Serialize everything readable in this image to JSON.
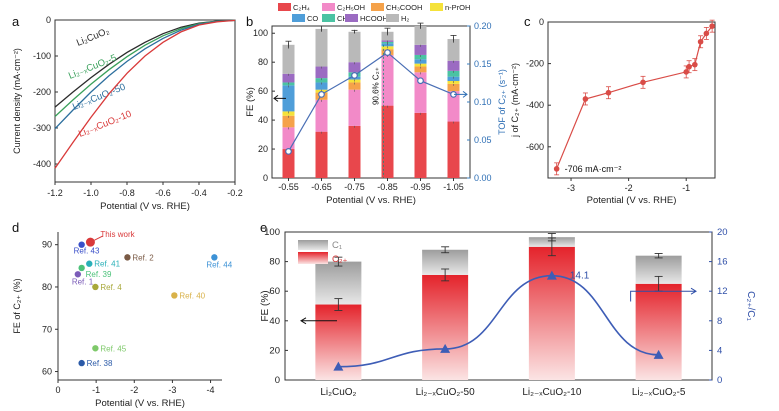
{
  "chart_data": [
    {
      "panel": "a",
      "type": "line",
      "xlabel": "Potential (V vs. RHE)",
      "ylabel": "Current density (mA·cm⁻²)",
      "xlim": [
        -1.2,
        -0.2
      ],
      "ylim": [
        -450,
        0
      ],
      "xticks": [
        "-1.2",
        "-1.0",
        "-0.8",
        "-0.6",
        "-0.4",
        "-0.2"
      ],
      "yticks": [
        "0",
        "-100",
        "-200",
        "-300",
        "-400"
      ],
      "x": [
        -1.2,
        -1.1,
        -1.0,
        -0.9,
        -0.8,
        -0.7,
        -0.6,
        -0.5,
        -0.4,
        -0.3,
        -0.2
      ],
      "series": [
        {
          "name": "Li₂CuO₂",
          "color": "#2b2b2b",
          "values": [
            -242,
            -200,
            -160,
            -123,
            -90,
            -62,
            -38,
            -20,
            -9,
            -3,
            -1
          ]
        },
        {
          "name": "Li₂₋ₓCuO₂-5",
          "color": "#3aa05b",
          "values": [
            -268,
            -222,
            -178,
            -138,
            -102,
            -70,
            -44,
            -24,
            -10,
            -3,
            -1
          ]
        },
        {
          "name": "Li₂₋ₓCuO₂-50",
          "color": "#2d6f9e",
          "values": [
            -302,
            -250,
            -200,
            -155,
            -115,
            -80,
            -51,
            -28,
            -12,
            -4,
            -1
          ]
        },
        {
          "name": "Li₂₋ₓCuO₂-10",
          "color": "#d93a3a",
          "values": [
            -412,
            -340,
            -270,
            -205,
            -148,
            -100,
            -62,
            -33,
            -14,
            -5,
            -1
          ]
        }
      ]
    },
    {
      "panel": "b",
      "type": "bar",
      "xlabel": "Potential (V vs. RHE)",
      "ylabel": "FE (%)",
      "y2label": "TOF of C₂₊ (s⁻¹)",
      "categories": [
        "-0.55",
        "-0.65",
        "-0.75",
        "-0.85",
        "-0.95",
        "-1.05"
      ],
      "ylim": [
        0,
        105
      ],
      "y2lim": [
        0,
        0.2
      ],
      "yticks": [
        "0",
        "20",
        "40",
        "60",
        "80",
        "100"
      ],
      "y2ticks": [
        "0.00",
        "0.05",
        "0.10",
        "0.15",
        "0.20"
      ],
      "series": [
        {
          "name": "C₂H₄",
          "color": "#e8474c",
          "values": [
            20,
            32,
            36,
            50,
            45,
            39
          ]
        },
        {
          "name": "C₂H₅OH",
          "color": "#f28ac8",
          "values": [
            15,
            22,
            25,
            35,
            28,
            21
          ]
        },
        {
          "name": "CH₃COOH",
          "color": "#f5a24a",
          "values": [
            8,
            5,
            5,
            4,
            4,
            5
          ]
        },
        {
          "name": "n-PrOH",
          "color": "#f5e23a",
          "values": [
            3,
            2,
            2,
            2,
            2,
            2
          ]
        },
        {
          "name": "CO",
          "color": "#4f9ed9",
          "values": [
            18,
            5,
            2,
            2,
            3,
            3
          ]
        },
        {
          "name": "CH₄",
          "color": "#4bc3a3",
          "values": [
            2,
            3,
            3,
            1,
            3,
            4
          ]
        },
        {
          "name": "HCOOH",
          "color": "#9b6bc2",
          "values": [
            6,
            8,
            7,
            1,
            7,
            7
          ]
        },
        {
          "name": "H₂",
          "color": "#b9b9b9",
          "values": [
            20,
            26,
            21,
            6,
            13,
            15
          ]
        }
      ],
      "errors": [
        2.5,
        2,
        1,
        2.5,
        2,
        2.5
      ],
      "tof": {
        "name": "TOF of C₂₊",
        "color": "#4a6fb5",
        "values": [
          0.035,
          0.11,
          0.135,
          0.165,
          0.128,
          0.11
        ]
      },
      "annotation": "90.6% C₂₊"
    },
    {
      "panel": "c",
      "type": "line",
      "xlabel": "Potential (V vs. RHE)",
      "ylabel": "j of C₂₊ (mA·cm⁻²)",
      "xlim": [
        -3.4,
        -0.5
      ],
      "ylim": [
        -750,
        0
      ],
      "xticks": [
        "-3",
        "-2",
        "-1"
      ],
      "yticks": [
        "0",
        "-200",
        "-400",
        "-600"
      ],
      "x": [
        -3.25,
        -2.75,
        -2.35,
        -1.75,
        -1.0,
        -0.95,
        -0.85,
        -0.75,
        -0.65,
        -0.55
      ],
      "values": [
        -706,
        -370,
        -340,
        -290,
        -240,
        -215,
        -205,
        -95,
        -55,
        -20
      ],
      "annotation": "-706 mA·cm⁻²",
      "color": "#d94c47"
    },
    {
      "panel": "d",
      "type": "scatter",
      "xlabel": "Potential (V vs. RHE)",
      "ylabel": "FE of C₂₊ (%)",
      "xlim": [
        0,
        -4.3
      ],
      "ylim": [
        58,
        93
      ],
      "xticks": [
        "0",
        "-1",
        "-2",
        "-3",
        "-4"
      ],
      "yticks": [
        "60",
        "70",
        "80",
        "90"
      ],
      "points": [
        {
          "label": "This work",
          "x": -0.85,
          "y": 90.6,
          "color": "#d9393a"
        },
        {
          "label": "Ref. 43",
          "x": -0.62,
          "y": 90.0,
          "color": "#3a4fc9"
        },
        {
          "label": "Ref. 2",
          "x": -1.82,
          "y": 87.0,
          "color": "#7a5a45"
        },
        {
          "label": "Ref. 44",
          "x": -4.1,
          "y": 87.0,
          "color": "#3d92d6"
        },
        {
          "label": "Ref. 41",
          "x": -0.82,
          "y": 85.5,
          "color": "#29b0b8"
        },
        {
          "label": "Ref. 39",
          "x": -0.62,
          "y": 84.5,
          "color": "#4cc27a"
        },
        {
          "label": "Ref. 1",
          "x": -0.52,
          "y": 83.0,
          "color": "#7b5cb8"
        },
        {
          "label": "Ref. 4",
          "x": -0.98,
          "y": 80.0,
          "color": "#a8a83a"
        },
        {
          "label": "Ref. 40",
          "x": -3.05,
          "y": 78.0,
          "color": "#d9b24a"
        },
        {
          "label": "Ref. 45",
          "x": -0.98,
          "y": 65.5,
          "color": "#7ec96a"
        },
        {
          "label": "Ref. 38",
          "x": -0.62,
          "y": 62.0,
          "color": "#2b5aa8"
        }
      ]
    },
    {
      "panel": "e",
      "type": "bar",
      "ylabel": "FE (%)",
      "y2label": "C₂₊/C₁",
      "categories": [
        "Li₂CuO₂",
        "Li₂₋ₓCuO₂-50",
        "Li₂₋ₓCuO₂-10",
        "Li₂₋ₓCuO₂-5"
      ],
      "ylim": [
        0,
        100
      ],
      "y2lim": [
        0,
        20
      ],
      "yticks": [
        "0",
        "20",
        "40",
        "60",
        "80",
        "100"
      ],
      "y2ticks": [
        "0",
        "4",
        "8",
        "12",
        "16",
        "20"
      ],
      "series": [
        {
          "name": "C₂₊",
          "color": "#e8373a",
          "values": [
            51,
            71,
            90,
            65
          ]
        },
        {
          "name": "C₁",
          "color": "#b0b0b0",
          "values": [
            29,
            17,
            6.5,
            19
          ]
        }
      ],
      "errors_total": [
        3,
        2,
        2.5,
        1.5
      ],
      "errors_c2": [
        4,
        4,
        6,
        5
      ],
      "ratio": {
        "name": "C₂₊/C₁",
        "color": "#3e5db6",
        "values": [
          1.8,
          4.2,
          14.1,
          3.4
        ]
      },
      "annotation": "14.1"
    }
  ]
}
